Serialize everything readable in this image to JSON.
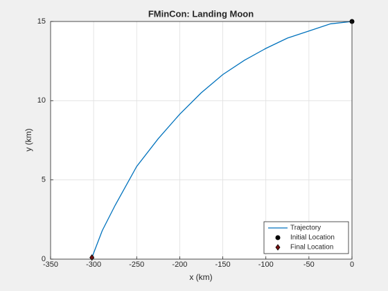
{
  "chart_data": {
    "type": "line",
    "title": "FMinCon: Landing Moon",
    "xlabel": "x (km)",
    "ylabel": "y (km)",
    "xlim": [
      -350,
      0
    ],
    "xticks": [
      -350,
      -300,
      -250,
      -200,
      -150,
      -100,
      -50,
      0
    ],
    "ylim": [
      0,
      15
    ],
    "yticks": [
      0,
      5,
      10,
      15
    ],
    "grid": true,
    "legend_location": "southeast",
    "series": [
      {
        "name": "Trajectory",
        "color": "#0072bd",
        "x": [
          0,
          -25,
          -50,
          -75,
          -100,
          -125,
          -150,
          -175,
          -200,
          -225,
          -250,
          -275,
          -290,
          -302
        ],
        "values": [
          15,
          14.85,
          14.4,
          13.95,
          13.3,
          12.55,
          11.65,
          10.5,
          9.15,
          7.6,
          5.85,
          3.4,
          1.8,
          0.1
        ]
      },
      {
        "name": "Initial Location",
        "color": "#000000",
        "marker": "circle",
        "x": [
          0
        ],
        "values": [
          15
        ]
      },
      {
        "name": "Final Location",
        "color": "#7a1010",
        "marker": "diamond",
        "x": [
          -302
        ],
        "values": [
          0.1
        ]
      }
    ]
  }
}
